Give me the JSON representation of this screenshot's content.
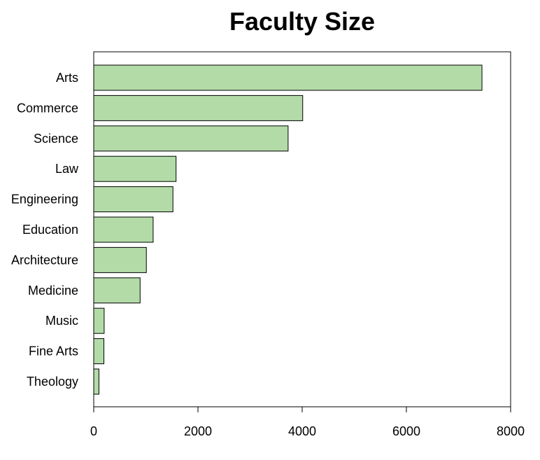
{
  "chart_data": {
    "type": "bar",
    "orientation": "horizontal",
    "title": "Faculty Size",
    "xlabel": "",
    "ylabel": "",
    "categories": [
      "Arts",
      "Commerce",
      "Science",
      "Law",
      "Engineering",
      "Education",
      "Architecture",
      "Medicine",
      "Music",
      "Fine Arts",
      "Theology"
    ],
    "values": [
      7450,
      4010,
      3730,
      1580,
      1520,
      1140,
      1010,
      890,
      200,
      195,
      100
    ],
    "xlim": [
      0,
      8000
    ],
    "xticks": [
      0,
      2000,
      4000,
      6000,
      8000
    ],
    "xtick_labels": [
      "0",
      "2000",
      "4000",
      "6000",
      "8000"
    ],
    "grid": false,
    "bar_color": "#b3dba8",
    "edge_color": "#000000"
  }
}
